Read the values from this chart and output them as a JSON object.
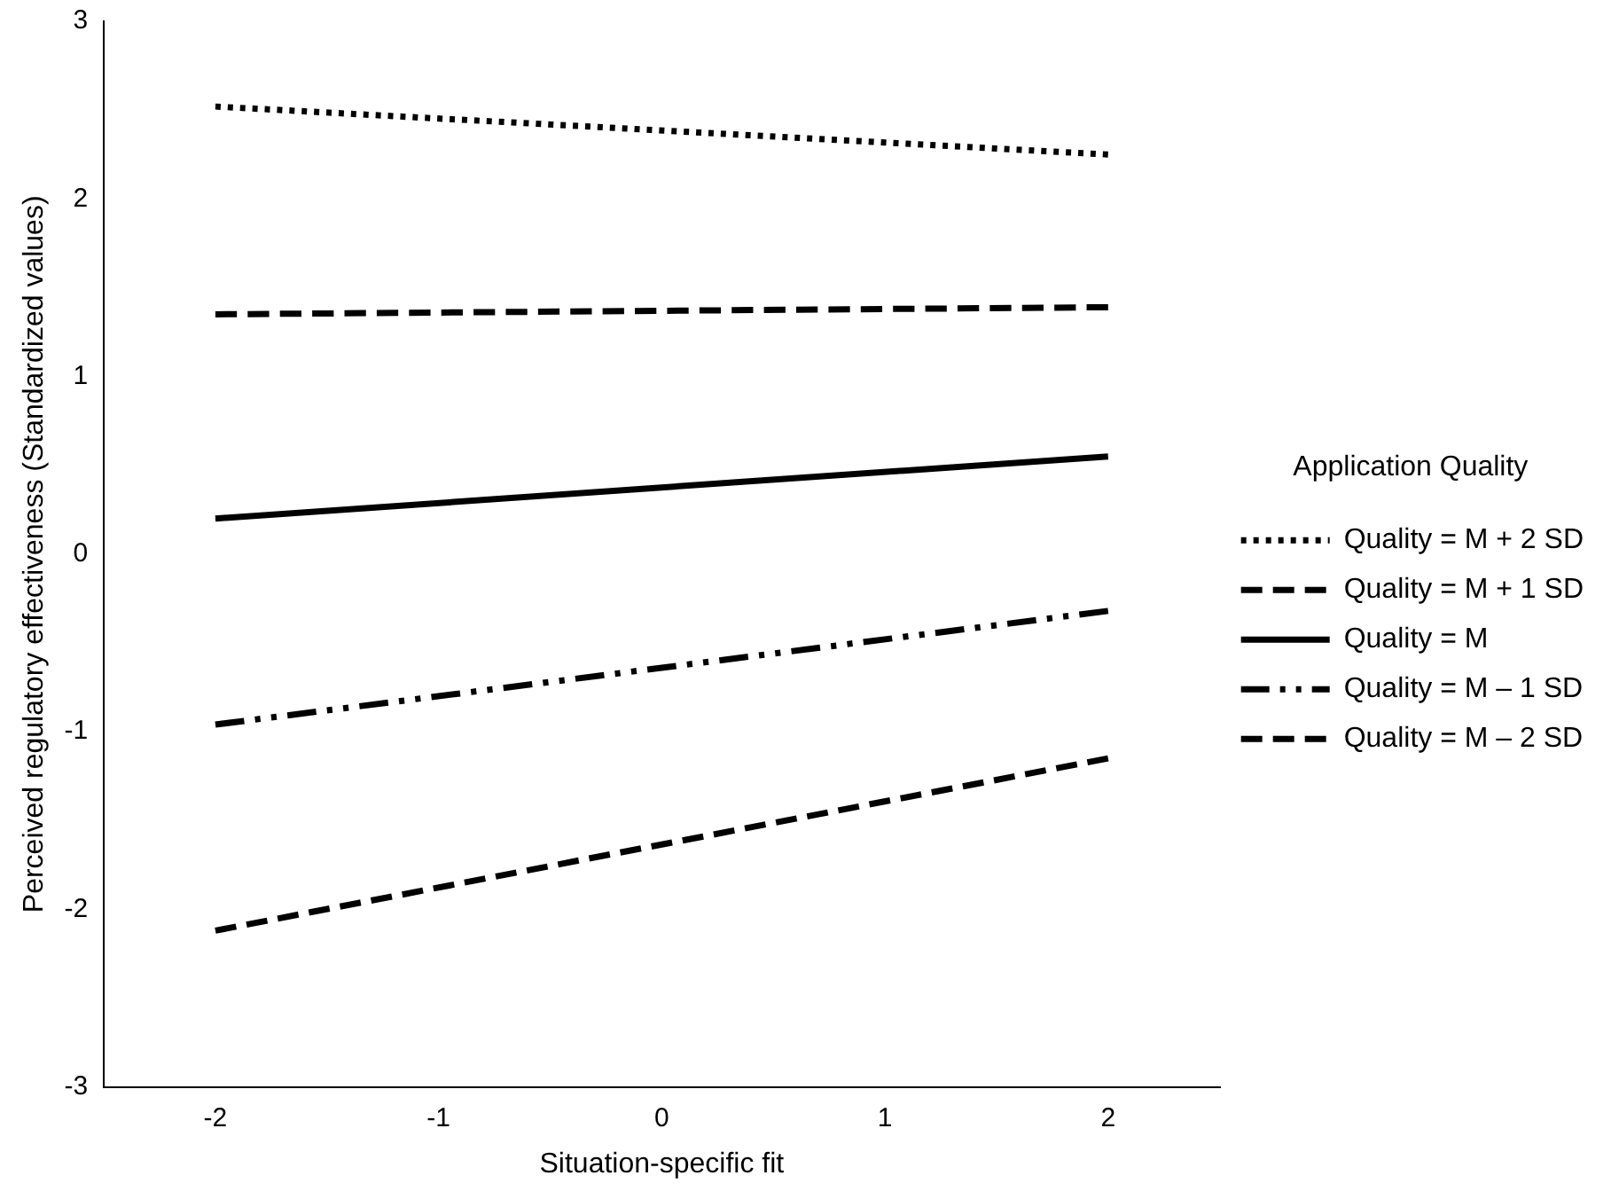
{
  "chart_data": {
    "type": "line",
    "xlabel": "Situation-specific fit",
    "ylabel": "Perceived regulatory effectiveness (Standardized values)",
    "legend_title": "Application Quality",
    "legend": "right",
    "grid": false,
    "marker": "none",
    "x": [
      -2,
      2
    ],
    "xlim": [
      -2.5,
      2.5
    ],
    "xticks": [
      -2,
      -1,
      0,
      1,
      2
    ],
    "ylim": [
      -3,
      3
    ],
    "yticks": [
      -3,
      -2,
      -1,
      0,
      1,
      2,
      3
    ],
    "series": [
      {
        "name": "Quality = M + 2 SD",
        "color": "#000000",
        "line_style": "dotted",
        "values": [
          2.52,
          2.25
        ]
      },
      {
        "name": "Quality = M + 1 SD",
        "color": "#000000",
        "line_style": "dashed",
        "values": [
          1.35,
          1.39
        ]
      },
      {
        "name": "Quality = M",
        "color": "#000000",
        "line_style": "solid",
        "values": [
          0.2,
          0.55
        ]
      },
      {
        "name": "Quality = M – 1 SD",
        "color": "#000000",
        "line_style": "dashdot",
        "values": [
          -0.96,
          -0.32
        ]
      },
      {
        "name": "Quality = M – 2 SD",
        "color": "#000000",
        "line_style": "dashed",
        "values": [
          -2.12,
          -1.15
        ]
      }
    ]
  }
}
